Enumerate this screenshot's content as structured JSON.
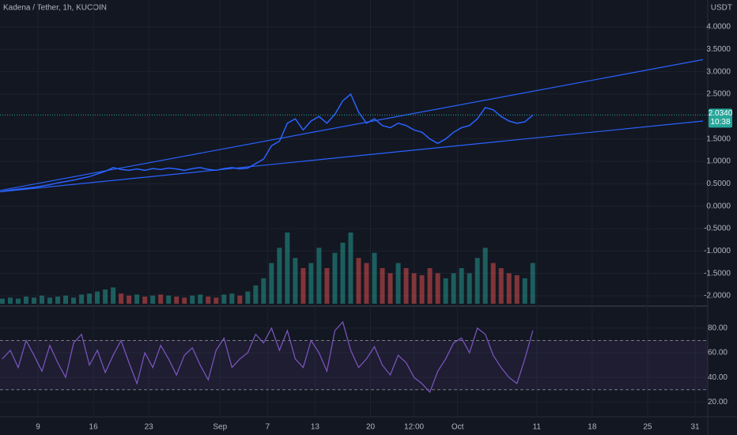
{
  "chart_data": {
    "type": "line",
    "title": "Kadena / Tether, 1h, KUCOIN",
    "currency": "USDT",
    "last_price": {
      "value": 2.034,
      "label": "2.0340"
    },
    "countdown": "10:38",
    "price_color": "#2962ff",
    "x": [
      4.5,
      5.5,
      6.5,
      7.5,
      8.5,
      9.5,
      10.5,
      11.5,
      12.5,
      13.5,
      14.5,
      15.5,
      16.5,
      17.5,
      18.5,
      19.5,
      20.5,
      21.5,
      22.5,
      23.5,
      24.5,
      25.5,
      26.5,
      27.5,
      28.5,
      29.5,
      30.5,
      31.5,
      32.5,
      33.5,
      34.5,
      35.5,
      36.5,
      37.5,
      38.5,
      39.5,
      40.5,
      41.5,
      42.5,
      43.5,
      44.5,
      45.5,
      46.5,
      47.5,
      48.5,
      49.5,
      50.5,
      51.5,
      52.5,
      53.5,
      54.5,
      55.5,
      56.5,
      57.5,
      58.5,
      59.5,
      60.5,
      61.5,
      62.5,
      63.5,
      64.5,
      65.5,
      66.5,
      67.5,
      68.5,
      69.5,
      70.5,
      71.5
    ],
    "price": [
      0.33,
      0.36,
      0.38,
      0.4,
      0.42,
      0.45,
      0.48,
      0.52,
      0.55,
      0.58,
      0.62,
      0.66,
      0.72,
      0.78,
      0.86,
      0.82,
      0.8,
      0.83,
      0.8,
      0.84,
      0.82,
      0.85,
      0.83,
      0.8,
      0.84,
      0.86,
      0.82,
      0.8,
      0.84,
      0.86,
      0.83,
      0.85,
      0.95,
      1.05,
      1.35,
      1.45,
      1.85,
      1.95,
      1.7,
      1.9,
      2.0,
      1.85,
      2.05,
      2.35,
      2.5,
      2.1,
      1.85,
      1.95,
      1.8,
      1.75,
      1.85,
      1.8,
      1.7,
      1.65,
      1.5,
      1.4,
      1.5,
      1.65,
      1.75,
      1.8,
      1.95,
      2.2,
      2.15,
      2.0,
      1.9,
      1.85,
      1.88,
      2.03
    ],
    "volume": [
      5,
      6,
      5,
      7,
      6,
      8,
      6,
      7,
      8,
      6,
      9,
      10,
      12,
      14,
      16,
      10,
      8,
      9,
      7,
      8,
      9,
      8,
      7,
      6,
      8,
      9,
      7,
      6,
      9,
      10,
      8,
      12,
      18,
      25,
      40,
      55,
      70,
      45,
      35,
      40,
      55,
      35,
      50,
      60,
      70,
      45,
      40,
      50,
      35,
      30,
      40,
      35,
      30,
      28,
      35,
      30,
      25,
      30,
      35,
      30,
      45,
      55,
      40,
      35,
      30,
      28,
      25,
      40
    ],
    "rsi": [
      55,
      62,
      48,
      70,
      58,
      45,
      66,
      52,
      40,
      68,
      75,
      50,
      62,
      44,
      58,
      70,
      52,
      35,
      60,
      48,
      66,
      55,
      42,
      58,
      64,
      50,
      38,
      62,
      72,
      48,
      55,
      60,
      75,
      68,
      80,
      62,
      78,
      55,
      48,
      70,
      60,
      45,
      78,
      85,
      62,
      48,
      55,
      65,
      50,
      42,
      58,
      52,
      40,
      35,
      28,
      45,
      55,
      68,
      72,
      60,
      80,
      75,
      58,
      48,
      40,
      35,
      55,
      78
    ],
    "trendlines": [
      {
        "x": [
          4.2,
          93
        ],
        "values": [
          0.35,
          3.27
        ]
      },
      {
        "x": [
          4.2,
          93
        ],
        "values": [
          0.32,
          1.9
        ]
      }
    ],
    "ylim": [
      -2.3,
      4.6
    ],
    "yticks": [
      {
        "value": 4,
        "label": "4.0000"
      },
      {
        "value": 3.5,
        "label": "3.5000"
      },
      {
        "value": 3,
        "label": "3.0000"
      },
      {
        "value": 2.5,
        "label": "2.5000"
      },
      {
        "value": 1.5,
        "label": "1.5000"
      },
      {
        "value": 1,
        "label": "1.0000"
      },
      {
        "value": 0.5,
        "label": "0.5000"
      },
      {
        "value": 0,
        "label": "0.0000"
      },
      {
        "value": -0.5,
        "label": "-0.5000"
      },
      {
        "value": -1,
        "label": "-1.0000"
      },
      {
        "value": -1.5,
        "label": "-1.5000"
      },
      {
        "value": -2,
        "label": "-2.0000"
      }
    ],
    "y2lim": [
      8,
      96
    ],
    "y2ticks": [
      {
        "value": 80,
        "label": "80.00"
      },
      {
        "value": 60,
        "label": "60.00"
      },
      {
        "value": 40,
        "label": "40.00"
      },
      {
        "value": 20,
        "label": "20.00"
      }
    ],
    "rsi_bands": [
      70,
      30
    ],
    "xlim": [
      4.2,
      96
    ],
    "xticks": [
      {
        "value": 9,
        "label": "9"
      },
      {
        "value": 16,
        "label": "16"
      },
      {
        "value": 23,
        "label": "23"
      },
      {
        "value": 32,
        "label": "Sep"
      },
      {
        "value": 38,
        "label": "7"
      },
      {
        "value": 44,
        "label": "13"
      },
      {
        "value": 51,
        "label": "20"
      },
      {
        "value": 56.5,
        "label": "12:00"
      },
      {
        "value": 62,
        "label": "Oct"
      },
      {
        "value": 72,
        "label": "11"
      },
      {
        "value": 79,
        "label": "18"
      },
      {
        "value": 86,
        "label": "25"
      },
      {
        "value": 92,
        "label": "31"
      }
    ],
    "grid": true
  }
}
